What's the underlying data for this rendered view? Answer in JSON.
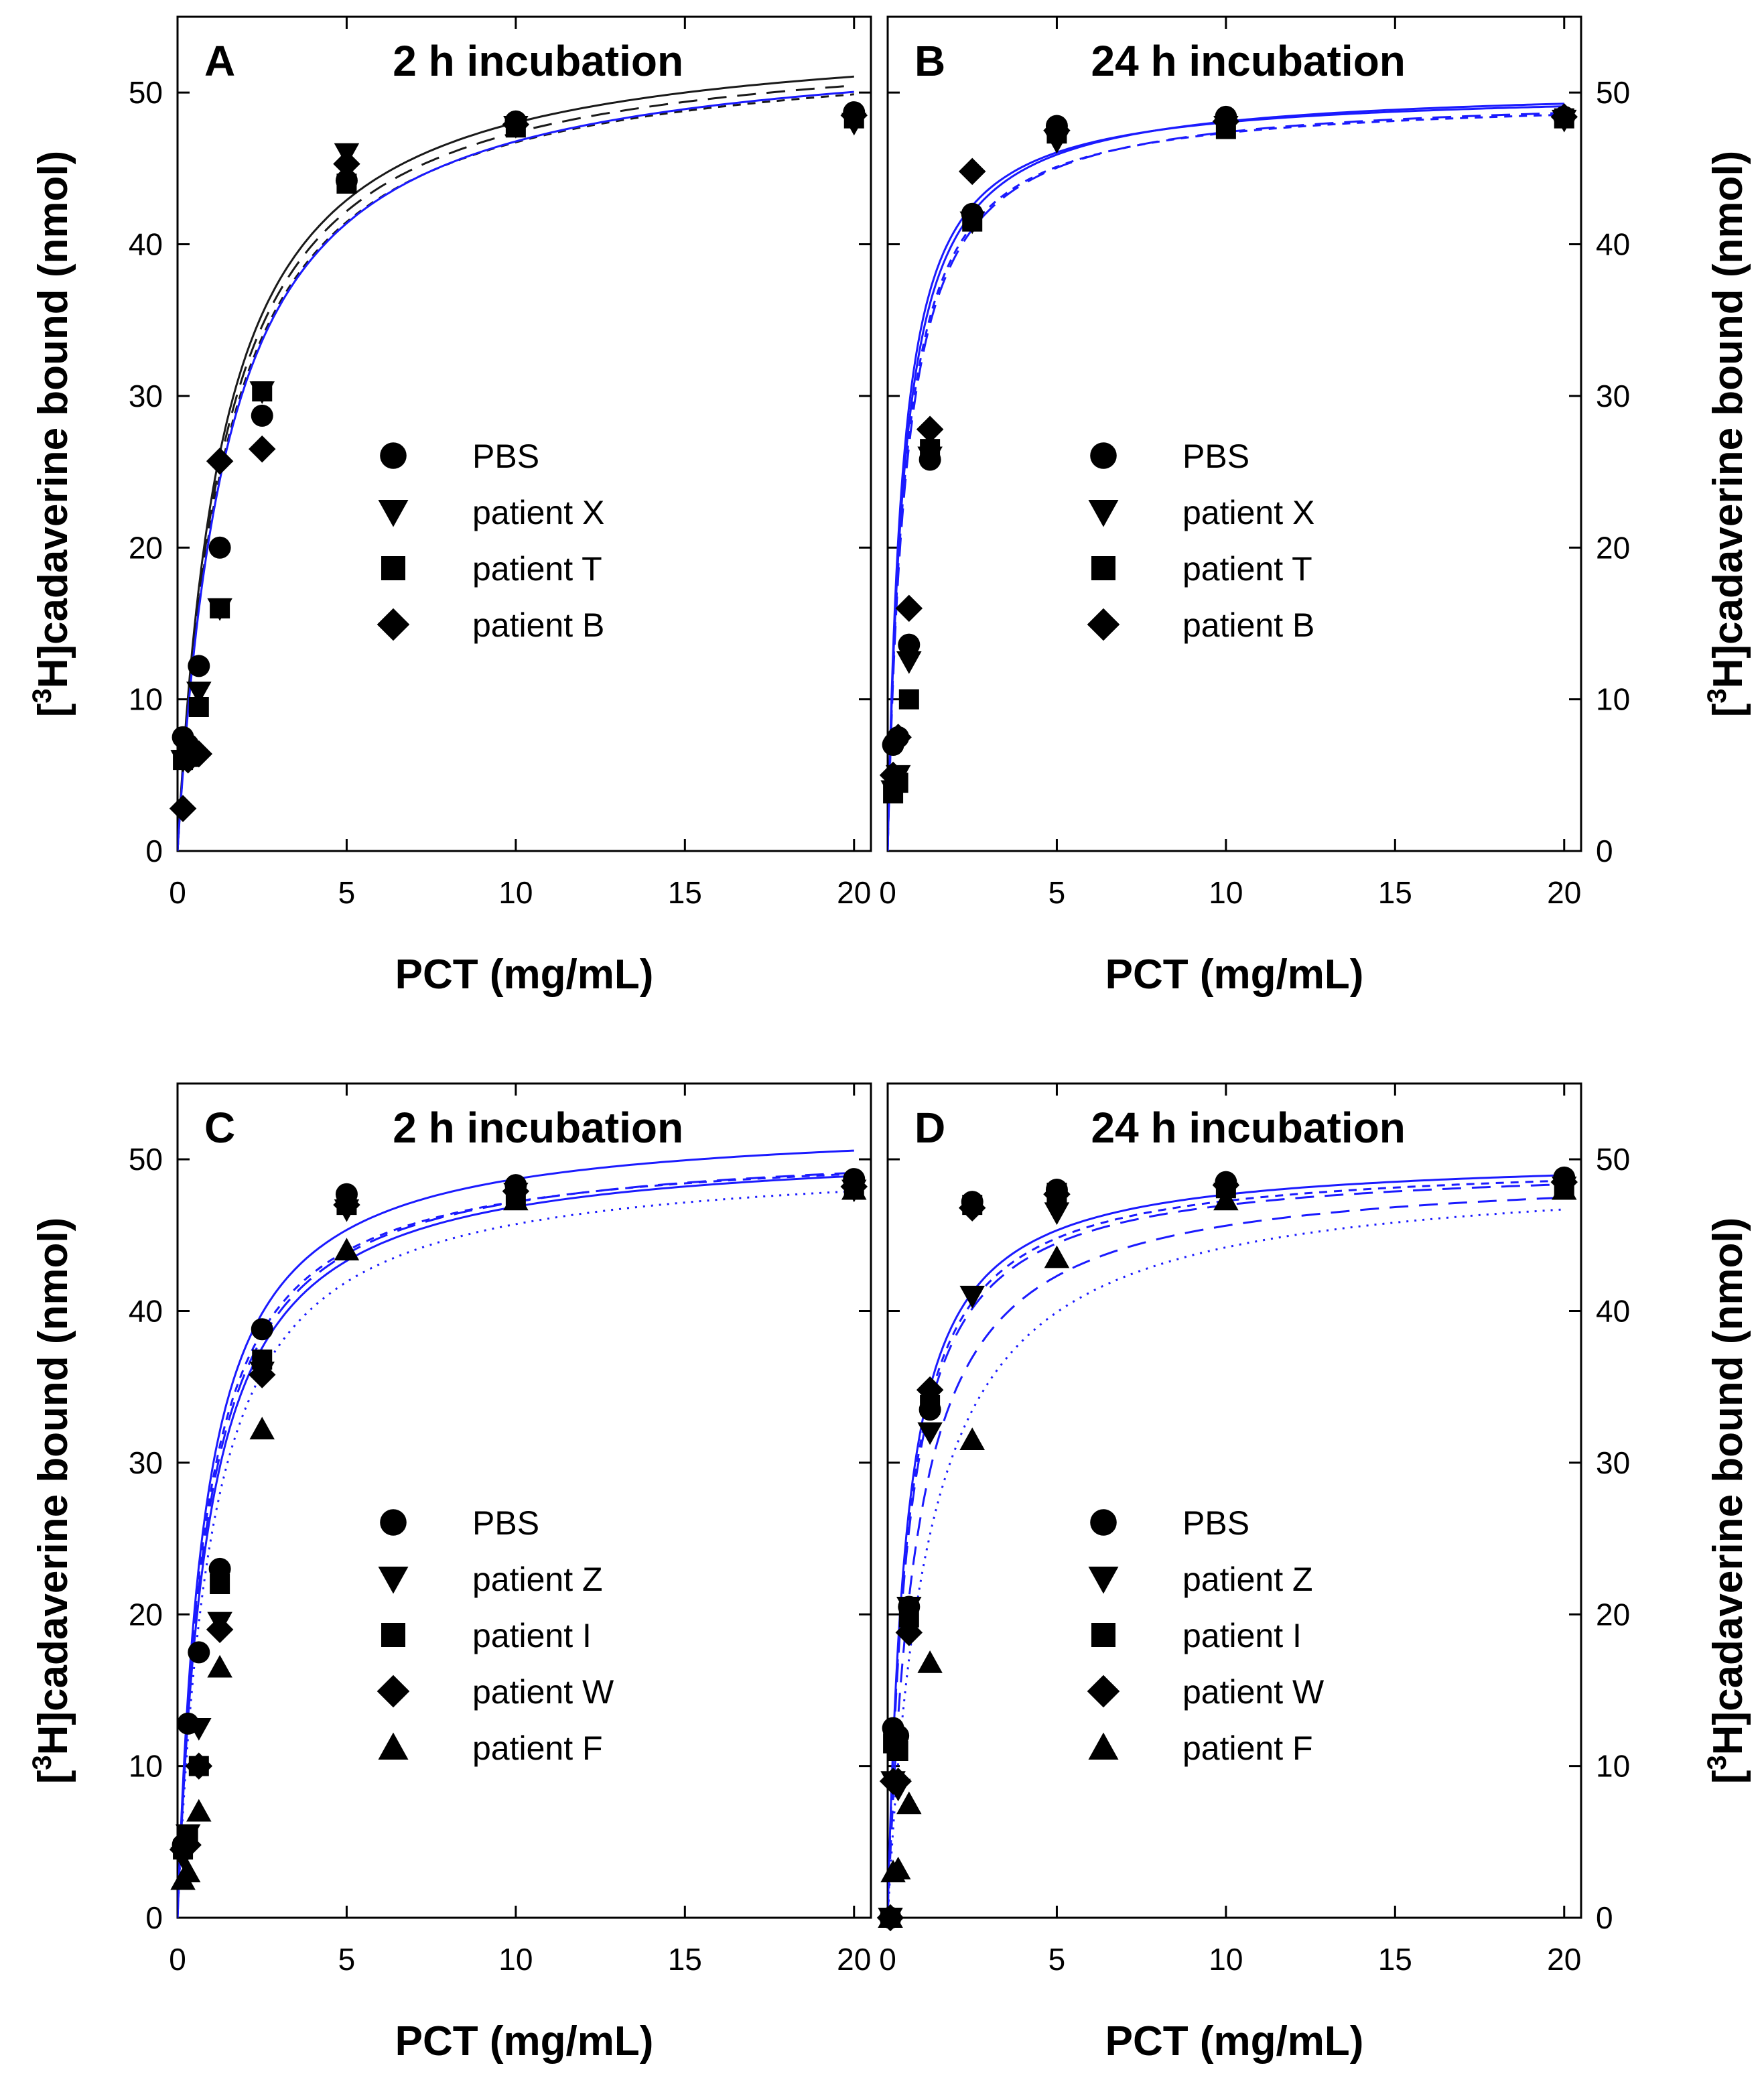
{
  "figure": {
    "ylabel": {
      "pre": "[",
      "sup": "3",
      "post": "H]cadaverine bound (nmol)"
    },
    "xlabel": "PCT (mg/mL)",
    "xlim": [
      0,
      20.5
    ],
    "ylim": [
      0,
      55
    ],
    "x_ticks": [
      0,
      5,
      10,
      15,
      20
    ],
    "y_ticks": [
      0,
      10,
      20,
      30,
      40,
      50
    ]
  },
  "chart_data": [
    {
      "panel": "A",
      "title": "2 h incubation",
      "type": "scatter",
      "fit_color": "#1a1aff",
      "series": [
        {
          "name": "PBS",
          "marker": "circle",
          "x": [
            0.16,
            0.31,
            0.63,
            1.25,
            2.5,
            5,
            10,
            20
          ],
          "y": [
            7.5,
            7.0,
            12.2,
            20.0,
            28.7,
            44.2,
            48.1,
            48.7
          ],
          "fit": {
            "bmax": 54.5,
            "kd": 1.35,
            "color": "black",
            "dash": ""
          }
        },
        {
          "name": "patient X",
          "marker": "triangle-down",
          "x": [
            0.16,
            0.31,
            0.63,
            1.25,
            2.5,
            5,
            10,
            20
          ],
          "y": [
            6.0,
            6.5,
            10.5,
            16.0,
            30.3,
            46.0,
            47.8,
            48.0
          ],
          "fit": {
            "bmax": 54.0,
            "kd": 1.4,
            "color": "black",
            "dash": "28,16"
          }
        },
        {
          "name": "patient T",
          "marker": "square",
          "x": [
            0.16,
            0.31,
            0.63,
            1.25,
            2.5,
            5,
            10,
            20
          ],
          "y": [
            6.0,
            6.2,
            9.5,
            16.0,
            30.3,
            44.0,
            47.7,
            48.3
          ],
          "fit": {
            "bmax": 53.5,
            "kd": 1.45,
            "color": "black",
            "dash": "12,10"
          }
        },
        {
          "name": "patient B",
          "marker": "diamond",
          "x": [
            0.16,
            0.31,
            0.63,
            1.25,
            2.5,
            5,
            10,
            20
          ],
          "y": [
            2.8,
            6.0,
            6.4,
            25.7,
            26.5,
            45.3,
            47.9,
            48.5
          ],
          "fit": {
            "bmax": 53.8,
            "kd": 1.5,
            "color": "blue",
            "dash": ""
          }
        }
      ]
    },
    {
      "panel": "B",
      "title": "24 h incubation",
      "type": "scatter",
      "series": [
        {
          "name": "PBS",
          "marker": "circle",
          "x": [
            0.16,
            0.31,
            0.63,
            1.25,
            2.5,
            5,
            10,
            20
          ],
          "y": [
            7.0,
            7.5,
            13.6,
            25.8,
            42.0,
            47.8,
            48.4,
            48.4
          ],
          "fit": {
            "bmax": 50.5,
            "kd": 0.5,
            "color": "blue",
            "dash": ""
          }
        },
        {
          "name": "patient X",
          "marker": "triangle-down",
          "x": [
            0.16,
            0.31,
            0.63,
            1.25,
            2.5,
            5,
            10,
            20
          ],
          "y": [
            4.0,
            5.0,
            12.5,
            26.0,
            41.5,
            46.8,
            47.8,
            48.2
          ],
          "fit": {
            "bmax": 50.0,
            "kd": 0.55,
            "color": "blue",
            "dash": "28,16"
          }
        },
        {
          "name": "patient T",
          "marker": "square",
          "x": [
            0.16,
            0.31,
            0.63,
            1.25,
            2.5,
            5,
            10,
            20
          ],
          "y": [
            3.8,
            4.5,
            10.0,
            26.5,
            41.5,
            47.3,
            47.6,
            48.3
          ],
          "fit": {
            "bmax": 49.8,
            "kd": 0.52,
            "color": "blue",
            "dash": "12,10"
          }
        },
        {
          "name": "patient B",
          "marker": "diamond",
          "x": [
            0.16,
            0.31,
            0.63,
            1.25,
            2.5,
            5,
            10,
            20
          ],
          "y": [
            5.0,
            7.5,
            16.0,
            27.8,
            44.8,
            47.5,
            48.1,
            48.4
          ],
          "fit": {
            "bmax": 50.2,
            "kd": 0.45,
            "color": "blue",
            "dash": ""
          }
        }
      ]
    },
    {
      "panel": "C",
      "title": "2 h incubation",
      "type": "scatter",
      "series": [
        {
          "name": "PBS",
          "marker": "circle",
          "x": [
            0.16,
            0.31,
            0.63,
            1.25,
            2.5,
            5,
            10,
            20
          ],
          "y": [
            4.8,
            12.8,
            17.5,
            23.0,
            38.8,
            47.7,
            48.3,
            48.7
          ],
          "fit": {
            "bmax": 52.6,
            "kd": 0.8,
            "color": "blue",
            "dash": ""
          }
        },
        {
          "name": "patient Z",
          "marker": "triangle-down",
          "x": [
            0.16,
            0.31,
            0.63,
            1.25,
            2.5,
            5,
            10,
            20
          ],
          "y": [
            4.0,
            5.5,
            12.5,
            19.5,
            36.0,
            46.7,
            47.8,
            48.0
          ],
          "fit": {
            "bmax": 51.2,
            "kd": 0.85,
            "color": "blue",
            "dash": "28,16"
          }
        },
        {
          "name": "patient I",
          "marker": "square",
          "x": [
            0.16,
            0.31,
            0.63,
            1.25,
            2.5,
            5,
            10,
            20
          ],
          "y": [
            4.5,
            5.5,
            10.0,
            22.0,
            36.8,
            47.0,
            47.6,
            48.1
          ],
          "fit": {
            "bmax": 51.0,
            "kd": 0.8,
            "color": "blue",
            "dash": "12,10"
          }
        },
        {
          "name": "patient W",
          "marker": "diamond",
          "x": [
            0.16,
            0.31,
            0.63,
            1.25,
            2.5,
            5,
            10,
            20
          ],
          "y": [
            4.5,
            4.8,
            10.0,
            19.0,
            35.8,
            47.0,
            47.9,
            48.2
          ],
          "fit": {
            "bmax": 51.1,
            "kd": 0.9,
            "color": "blue",
            "dash": ""
          }
        },
        {
          "name": "patient F",
          "marker": "triangle-up",
          "x": [
            0.16,
            0.31,
            0.63,
            1.25,
            2.5,
            5,
            10,
            20
          ],
          "y": [
            2.5,
            3.0,
            7.0,
            16.5,
            32.2,
            44.0,
            47.3,
            48.0
          ],
          "fit": {
            "bmax": 50.3,
            "kd": 1.0,
            "color": "blue",
            "dash": "3,9"
          }
        }
      ]
    },
    {
      "panel": "D",
      "title": "24 h incubation",
      "type": "scatter",
      "series": [
        {
          "name": "PBS",
          "marker": "circle",
          "x": [
            0.08,
            0.16,
            0.31,
            0.63,
            1.25,
            2.5,
            5,
            10,
            20
          ],
          "y": [
            0.0,
            12.5,
            12.0,
            20.5,
            33.5,
            47.2,
            48.0,
            48.5,
            48.8
          ],
          "fit": {
            "bmax": 50.3,
            "kd": 0.55,
            "color": "blue",
            "dash": ""
          }
        },
        {
          "name": "patient Z",
          "marker": "triangle-down",
          "x": [
            0.08,
            0.16,
            0.31,
            0.63,
            1.25,
            2.5,
            5,
            10,
            20
          ],
          "y": [
            0.0,
            9.0,
            8.5,
            20.5,
            32.0,
            41.0,
            46.5,
            47.8,
            48.2
          ],
          "fit": {
            "bmax": 49.8,
            "kd": 0.6,
            "color": "blue",
            "dash": "28,16"
          }
        },
        {
          "name": "patient I",
          "marker": "square",
          "x": [
            0.08,
            0.16,
            0.31,
            0.63,
            1.25,
            2.5,
            5,
            10,
            20
          ],
          "y": [
            0.0,
            11.5,
            11.0,
            19.8,
            33.8,
            47.0,
            47.8,
            48.1,
            48.3
          ],
          "fit": {
            "bmax": 50.0,
            "kd": 0.58,
            "color": "blue",
            "dash": "12,10"
          }
        },
        {
          "name": "patient W",
          "marker": "diamond",
          "x": [
            0.08,
            0.16,
            0.31,
            0.63,
            1.25,
            2.5,
            5,
            10,
            20
          ],
          "y": [
            0.0,
            9.0,
            9.0,
            18.8,
            34.8,
            46.8,
            47.7,
            48.3,
            48.5
          ],
          "fit": {
            "bmax": 49.5,
            "kd": 0.85,
            "color": "blue",
            "dash": "28,16"
          }
        },
        {
          "name": "patient F",
          "marker": "triangle-up",
          "x": [
            0.08,
            0.16,
            0.31,
            0.63,
            1.25,
            2.5,
            5,
            10,
            20
          ],
          "y": [
            0.0,
            3.0,
            3.2,
            7.5,
            16.8,
            31.5,
            43.5,
            47.3,
            48.0
          ],
          "fit": {
            "bmax": 49.5,
            "kd": 1.2,
            "color": "blue",
            "dash": "3,9"
          }
        }
      ]
    }
  ]
}
